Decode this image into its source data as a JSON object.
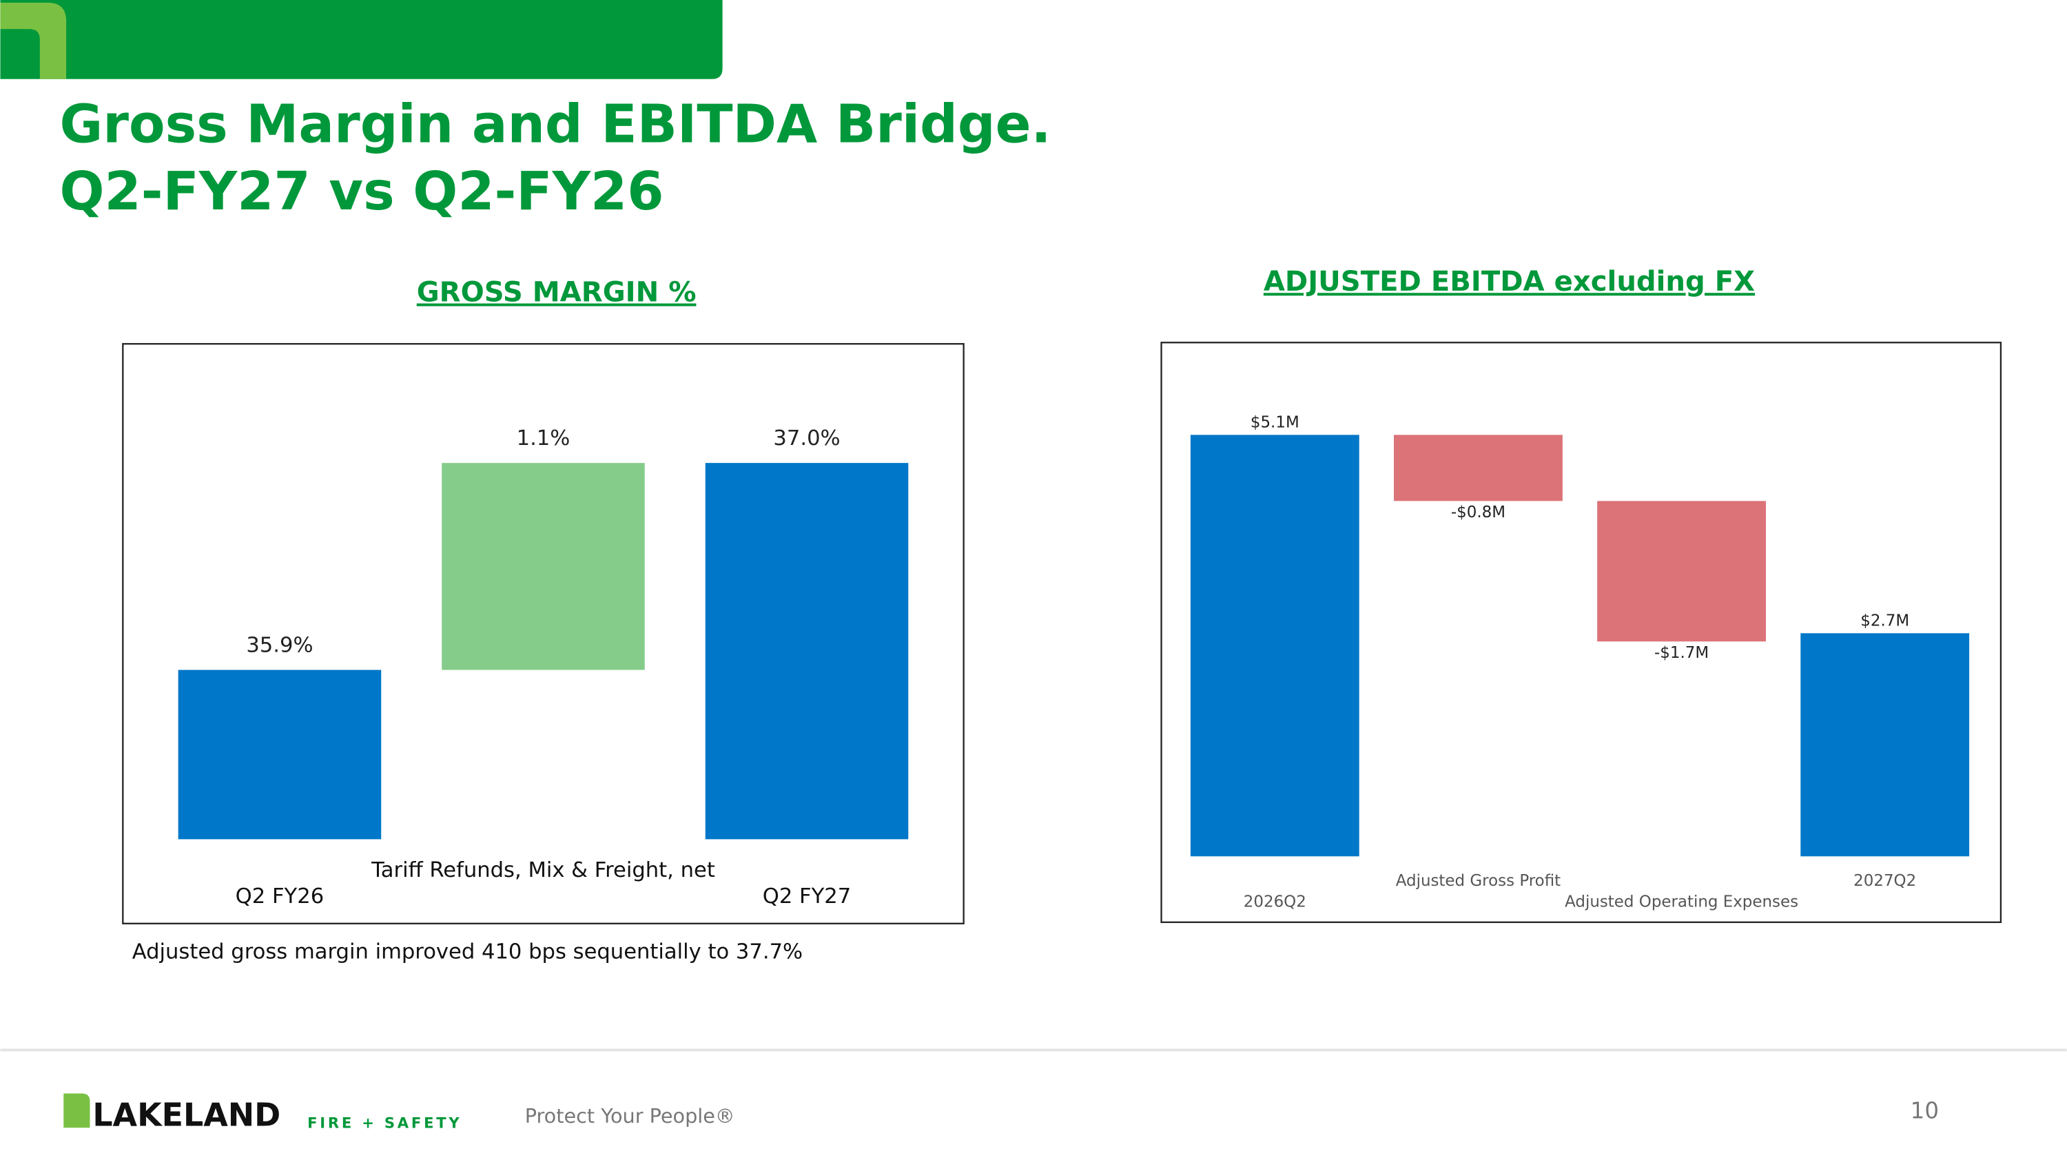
{
  "slide": {
    "title": [
      "Gross Margin and EBITDA Bridge.",
      "Q2-FY27 vs Q2-FY26"
    ],
    "footnote": "Adjusted gross margin improved 410 bps sequentially to 37.7%",
    "logo": "LAKELAND",
    "logo_tagline": "FIRE + SAFETY",
    "slogan": "Protect Your People®",
    "page_number": "10"
  },
  "chart_data": [
    {
      "type": "waterfall",
      "title": "GROSS MARGIN %",
      "categories": [
        "Q2 FY26",
        "Tariff Refunds, Mix & Freight, net",
        "Q2 FY27"
      ],
      "values": [
        35.9,
        1.1,
        37.0
      ],
      "value_labels": [
        "35.9%",
        "1.1%",
        "37.0%"
      ],
      "measures": [
        "absolute",
        "relative",
        "total"
      ],
      "colors": [
        "#0077c8",
        "#85cc8a",
        "#0077c8"
      ],
      "ylim": [
        35,
        37.5
      ]
    },
    {
      "type": "waterfall",
      "title": "ADJUSTED EBITDA excluding FX",
      "categories": [
        "2026Q2",
        "Adjusted Gross Profit",
        "Adjusted Operating Expenses",
        "2027Q2"
      ],
      "values": [
        5.1,
        -0.8,
        -1.7,
        2.7
      ],
      "value_labels": [
        "$5.1M",
        "-$0.8M",
        "-$1.7M",
        "$2.7M"
      ],
      "measures": [
        "absolute",
        "relative",
        "relative",
        "total"
      ],
      "colors": [
        "#0077c8",
        "#dc7378",
        "#dc7378",
        "#0077c8"
      ],
      "ylim": [
        0,
        5.5
      ]
    }
  ]
}
